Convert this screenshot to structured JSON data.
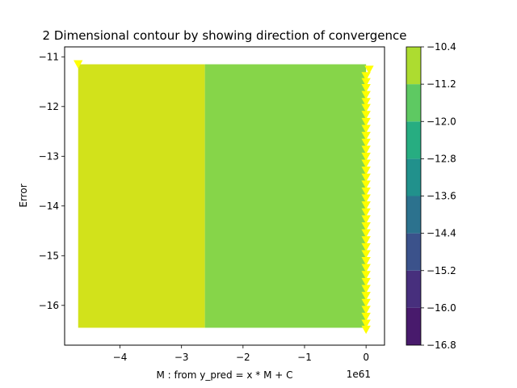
{
  "chart_data": {
    "type": "contour",
    "title": "2 Dimensional contour by showing direction of convergence",
    "xlabel": "M : from y_pred = x * M + C",
    "ylabel": "Error",
    "x_offset_label": "1e61",
    "xlim": [
      -4.9,
      0.3
    ],
    "ylim": [
      -16.8,
      -10.8
    ],
    "x_ticks": [
      -4,
      -3,
      -2,
      -1,
      0
    ],
    "y_ticks": [
      -16,
      -15,
      -14,
      -13,
      -12,
      -11
    ],
    "filled_regions": [
      {
        "x_range": [
          -4.68,
          -2.62
        ],
        "y_range": [
          -16.45,
          -11.15
        ],
        "level_band": [
          -11.2,
          -10.4
        ],
        "color": "#d2e21b"
      },
      {
        "x_range": [
          -2.62,
          0.0
        ],
        "y_range": [
          -16.45,
          -11.15
        ],
        "level_band": [
          -12.0,
          -11.2
        ],
        "color": "#86d549"
      }
    ],
    "colorbar": {
      "levels": [
        -16.8,
        -16.0,
        -15.2,
        -14.4,
        -13.6,
        -12.8,
        -12.0,
        -11.2,
        -10.4
      ],
      "colors": [
        "#481a6c",
        "#472f7d",
        "#3b528b",
        "#2c728e",
        "#21918c",
        "#27ad81",
        "#5ec962",
        "#addc30"
      ],
      "tick_labels": [
        "-16.8",
        "-16.0",
        "-15.2",
        "-14.4",
        "-13.6",
        "-12.8",
        "-12.0",
        "-11.2",
        "-10.4"
      ]
    },
    "markers": {
      "shape": "triangle-down",
      "color": "#ffff00",
      "points": [
        [
          -4.68,
          -11.14
        ],
        [
          0.05,
          -11.25
        ],
        [
          0.0,
          -11.38
        ],
        [
          0.0,
          -11.5
        ],
        [
          0.0,
          -11.62
        ],
        [
          0.0,
          -11.76
        ],
        [
          0.0,
          -11.9
        ],
        [
          0.0,
          -12.02
        ],
        [
          0.0,
          -12.16
        ],
        [
          0.0,
          -12.3
        ],
        [
          0.0,
          -12.44
        ],
        [
          0.0,
          -12.58
        ],
        [
          0.0,
          -12.72
        ],
        [
          0.0,
          -12.86
        ],
        [
          0.0,
          -13.0
        ],
        [
          0.0,
          -13.14
        ],
        [
          0.0,
          -13.28
        ],
        [
          0.0,
          -13.42
        ],
        [
          0.0,
          -13.56
        ],
        [
          0.0,
          -13.7
        ],
        [
          0.0,
          -13.84
        ],
        [
          0.0,
          -13.98
        ],
        [
          0.0,
          -14.12
        ],
        [
          0.0,
          -14.26
        ],
        [
          0.0,
          -14.4
        ],
        [
          0.0,
          -14.54
        ],
        [
          0.0,
          -14.68
        ],
        [
          0.0,
          -14.82
        ],
        [
          0.0,
          -14.96
        ],
        [
          0.0,
          -15.1
        ],
        [
          0.0,
          -15.24
        ],
        [
          0.0,
          -15.38
        ],
        [
          0.0,
          -15.52
        ],
        [
          0.0,
          -15.66
        ],
        [
          0.0,
          -15.8
        ],
        [
          0.0,
          -15.94
        ],
        [
          0.0,
          -16.08
        ],
        [
          0.0,
          -16.22
        ],
        [
          0.0,
          -16.36
        ],
        [
          0.0,
          -16.48
        ]
      ]
    }
  }
}
